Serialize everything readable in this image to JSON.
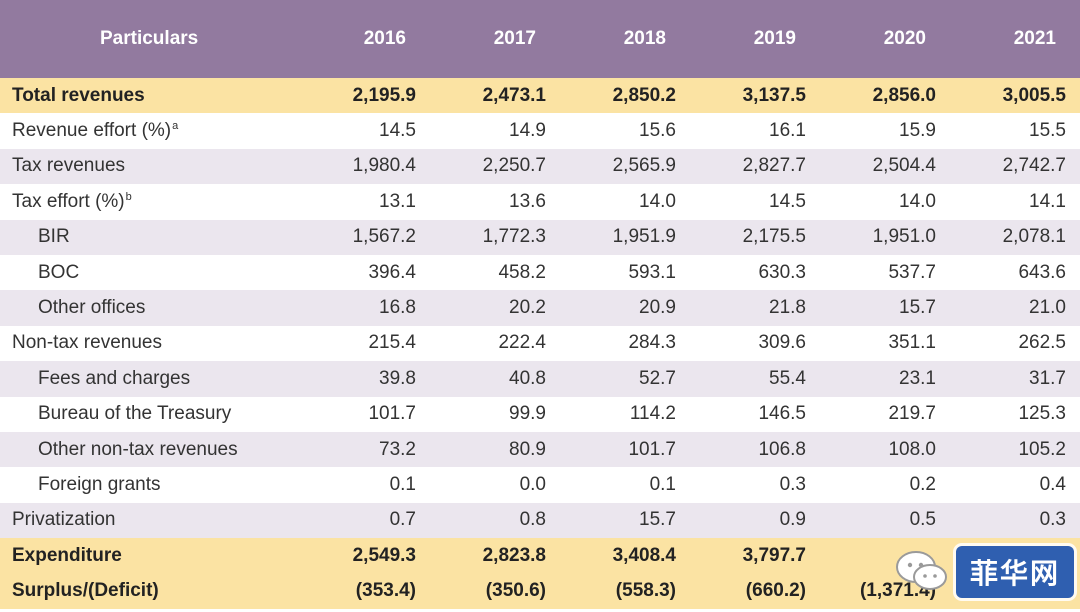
{
  "table": {
    "headers": [
      "Particulars",
      "2016",
      "2017",
      "2018",
      "2019",
      "2020",
      "2021"
    ],
    "rows": [
      {
        "label": "Total revenues",
        "sup": "",
        "values": [
          "2,195.9",
          "2,473.1",
          "2,850.2",
          "3,137.5",
          "2,856.0",
          "3,005.5"
        ]
      },
      {
        "label": "Revenue effort (%)",
        "sup": "a",
        "values": [
          "14.5",
          "14.9",
          "15.6",
          "16.1",
          "15.9",
          "15.5"
        ]
      },
      {
        "label": "Tax revenues",
        "sup": "",
        "values": [
          "1,980.4",
          "2,250.7",
          "2,565.9",
          "2,827.7",
          "2,504.4",
          "2,742.7"
        ]
      },
      {
        "label": "Tax effort (%)",
        "sup": "b",
        "values": [
          "13.1",
          "13.6",
          "14.0",
          "14.5",
          "14.0",
          "14.1"
        ]
      },
      {
        "label": "BIR",
        "sup": "",
        "values": [
          "1,567.2",
          "1,772.3",
          "1,951.9",
          "2,175.5",
          "1,951.0",
          "2,078.1"
        ]
      },
      {
        "label": "BOC",
        "sup": "",
        "values": [
          "396.4",
          "458.2",
          "593.1",
          "630.3",
          "537.7",
          "643.6"
        ]
      },
      {
        "label": "Other offices",
        "sup": "",
        "values": [
          "16.8",
          "20.2",
          "20.9",
          "21.8",
          "15.7",
          "21.0"
        ]
      },
      {
        "label": "Non-tax revenues",
        "sup": "",
        "values": [
          "215.4",
          "222.4",
          "284.3",
          "309.6",
          "351.1",
          "262.5"
        ]
      },
      {
        "label": "Fees and charges",
        "sup": "",
        "values": [
          "39.8",
          "40.8",
          "52.7",
          "55.4",
          "23.1",
          "31.7"
        ]
      },
      {
        "label": "Bureau of the Treasury",
        "sup": "",
        "values": [
          "101.7",
          "99.9",
          "114.2",
          "146.5",
          "219.7",
          "125.3"
        ]
      },
      {
        "label": "Other non-tax revenues",
        "sup": "",
        "values": [
          "73.2",
          "80.9",
          "101.7",
          "106.8",
          "108.0",
          "105.2"
        ]
      },
      {
        "label": "Foreign grants",
        "sup": "",
        "values": [
          "0.1",
          "0.0",
          "0.1",
          "0.3",
          "0.2",
          "0.4"
        ]
      },
      {
        "label": "Privatization",
        "sup": "",
        "values": [
          "0.7",
          "0.8",
          "15.7",
          "0.9",
          "0.5",
          "0.3"
        ]
      },
      {
        "label": "Expenditure",
        "sup": "",
        "values": [
          "2,549.3",
          "2,823.8",
          "3,408.4",
          "3,797.7",
          "",
          ""
        ]
      },
      {
        "label": "Surplus/(Deficit)",
        "sup": "",
        "values": [
          "(353.4)",
          "(350.6)",
          "(558.3)",
          "(660.2)",
          "(1,371.4)",
          ""
        ]
      }
    ]
  },
  "watermark": {
    "text": "菲华网",
    "badge_color": "#2f5fb0",
    "icon": "chat-bubbles-icon"
  },
  "colors": {
    "header_bg": "#927a9f",
    "shade_bg": "#ebe6ee",
    "total_bg": "#fbe3a3"
  }
}
